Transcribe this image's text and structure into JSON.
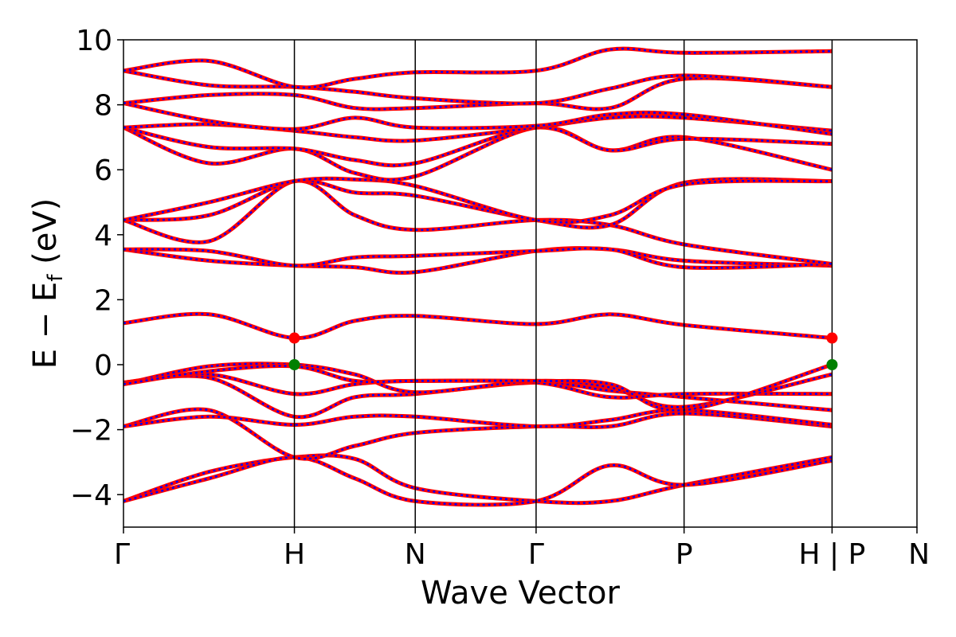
{
  "chart_data": {
    "type": "line",
    "title": "",
    "xlabel": "Wave Vector",
    "ylabel": "E − E",
    "ylabel_subscript": "f",
    "ylabel_unit": " (eV)",
    "ylim": [
      -5,
      10
    ],
    "yticks": [
      -4,
      -2,
      0,
      2,
      4,
      6,
      8,
      10
    ],
    "ytick_labels": [
      "−4",
      "−2",
      "0",
      "2",
      "4",
      "6",
      "8",
      "10"
    ],
    "xlim": [
      0,
      1
    ],
    "high_symmetry_points": [
      {
        "label": "Γ",
        "x": 0.0
      },
      {
        "label": "H",
        "x": 0.2154
      },
      {
        "label": "N",
        "x": 0.3677
      },
      {
        "label": "Γ",
        "x": 0.52
      },
      {
        "label": "P",
        "x": 0.7065
      },
      {
        "label": "H | P",
        "x": 0.893
      },
      {
        "label": "N",
        "x": 1.0
      }
    ],
    "grid": false,
    "colors": {
      "solid_band": "#ff0000",
      "dashed_band": "#0000ff",
      "cbm_marker": "#ff0000",
      "vbm_marker": "#008000",
      "kpoint_line": "#000000"
    },
    "bands": [
      {
        "y": [
          -4.2,
          -3.3,
          -2.85,
          -2.9,
          -3.8,
          -4.2,
          -4.2,
          -3.7,
          -2.85
        ]
      },
      {
        "y": [
          -4.2,
          -3.5,
          -2.85,
          -3.5,
          -4.2,
          -4.2,
          -3.1,
          -3.7,
          -2.95
        ]
      },
      {
        "y": [
          -1.9,
          -1.4,
          -2.85,
          -2.5,
          -2.1,
          -1.9,
          -1.9,
          -1.5,
          -1.9
        ]
      },
      {
        "y": [
          -1.9,
          -1.6,
          -1.85,
          -1.6,
          -1.6,
          -1.9,
          -1.7,
          -1.4,
          -1.85
        ]
      },
      {
        "y": [
          -0.55,
          -0.4,
          -1.6,
          -1.0,
          -0.9,
          -0.55,
          -0.8,
          -1.0,
          -1.4
        ]
      },
      {
        "y": [
          -0.55,
          -0.3,
          -0.9,
          -0.6,
          -0.5,
          -0.55,
          -1.0,
          -0.9,
          -0.9
        ]
      },
      {
        "y": [
          -0.6,
          -0.05,
          0.0,
          -0.3,
          -0.85,
          -0.5,
          -0.7,
          -1.3,
          -0.3
        ]
      },
      {
        "y": [
          -0.6,
          -0.2,
          -0.05,
          -0.5,
          -0.5,
          -0.5,
          -0.6,
          -1.4,
          0.0
        ]
      },
      {
        "y": [
          1.28,
          1.55,
          0.82,
          1.35,
          1.5,
          1.25,
          1.55,
          1.22,
          0.82
        ]
      },
      {
        "y": [
          3.55,
          3.2,
          3.05,
          3.0,
          2.85,
          3.5,
          3.55,
          3.2,
          3.05
        ]
      },
      {
        "y": [
          3.55,
          3.5,
          3.05,
          3.3,
          3.35,
          3.5,
          3.55,
          3.0,
          3.1
        ]
      },
      {
        "y": [
          4.45,
          3.8,
          5.65,
          4.6,
          4.15,
          4.45,
          4.3,
          3.7,
          3.1
        ]
      },
      {
        "y": [
          4.45,
          4.6,
          5.65,
          5.3,
          5.2,
          4.45,
          4.3,
          5.6,
          5.65
        ]
      },
      {
        "y": [
          4.45,
          5.0,
          5.65,
          5.7,
          5.5,
          4.45,
          4.6,
          5.55,
          5.65
        ]
      },
      {
        "y": [
          7.3,
          6.2,
          6.65,
          5.9,
          5.8,
          7.3,
          6.6,
          7.0,
          6.0
        ]
      },
      {
        "y": [
          7.3,
          6.7,
          6.65,
          6.3,
          6.2,
          7.3,
          6.6,
          6.95,
          6.8
        ]
      },
      {
        "y": [
          7.3,
          7.4,
          7.2,
          7.0,
          6.9,
          7.3,
          7.6,
          7.6,
          7.2
        ]
      },
      {
        "y": [
          8.05,
          7.5,
          7.25,
          7.6,
          7.3,
          7.35,
          7.7,
          7.7,
          7.1
        ]
      },
      {
        "y": [
          8.05,
          8.3,
          8.3,
          7.9,
          7.9,
          8.05,
          7.9,
          8.8,
          8.55
        ]
      },
      {
        "y": [
          9.05,
          8.6,
          8.55,
          8.4,
          8.2,
          8.05,
          8.5,
          8.9,
          8.55
        ]
      },
      {
        "y": [
          9.05,
          9.35,
          8.55,
          8.8,
          9.0,
          9.05,
          9.7,
          9.6,
          9.65
        ]
      }
    ],
    "markers": [
      {
        "x": 0.2154,
        "y": 0.82,
        "color": "cbm_marker"
      },
      {
        "x": 0.2154,
        "y": 0.0,
        "color": "vbm_marker"
      },
      {
        "x": 0.893,
        "y": 0.82,
        "color": "cbm_marker"
      },
      {
        "x": 0.893,
        "y": 0.0,
        "color": "vbm_marker"
      }
    ]
  }
}
